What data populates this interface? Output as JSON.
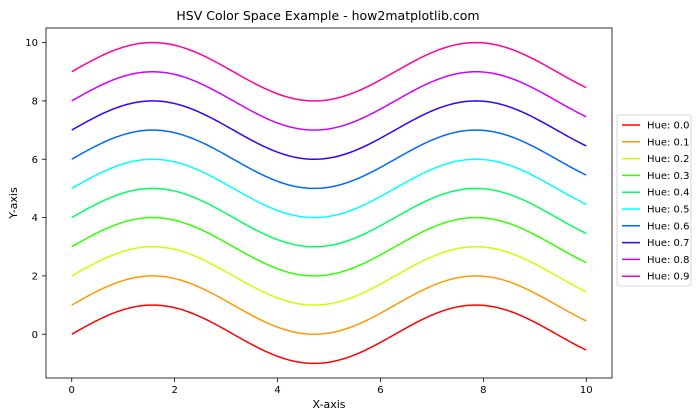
{
  "chart_data": {
    "type": "line",
    "title": "HSV Color Space Example - how2matplotlib.com",
    "xlabel": "X-axis",
    "ylabel": "Y-axis",
    "xlim": [
      -0.5,
      10.5
    ],
    "ylim": [
      -1.5,
      10.5
    ],
    "xticks": [
      0,
      2,
      4,
      6,
      8,
      10
    ],
    "yticks": [
      0,
      2,
      4,
      6,
      8,
      10
    ],
    "grid": false,
    "legend_position": "right",
    "function": "y = sin(x) + offset, x from 0 to 10",
    "series": [
      {
        "name": "Hue: 0.0",
        "offset": 0,
        "color": "#ff0000"
      },
      {
        "name": "Hue: 0.1",
        "offset": 1,
        "color": "#ff9900"
      },
      {
        "name": "Hue: 0.2",
        "offset": 2,
        "color": "#ccff00"
      },
      {
        "name": "Hue: 0.3",
        "offset": 3,
        "color": "#33ff00"
      },
      {
        "name": "Hue: 0.4",
        "offset": 4,
        "color": "#00ff66"
      },
      {
        "name": "Hue: 0.5",
        "offset": 5,
        "color": "#00ffff"
      },
      {
        "name": "Hue: 0.6",
        "offset": 6,
        "color": "#0066ff"
      },
      {
        "name": "Hue: 0.7",
        "offset": 7,
        "color": "#3300ff"
      },
      {
        "name": "Hue: 0.8",
        "offset": 8,
        "color": "#cc00ff"
      },
      {
        "name": "Hue: 0.9",
        "offset": 9,
        "color": "#ff0099"
      }
    ]
  }
}
